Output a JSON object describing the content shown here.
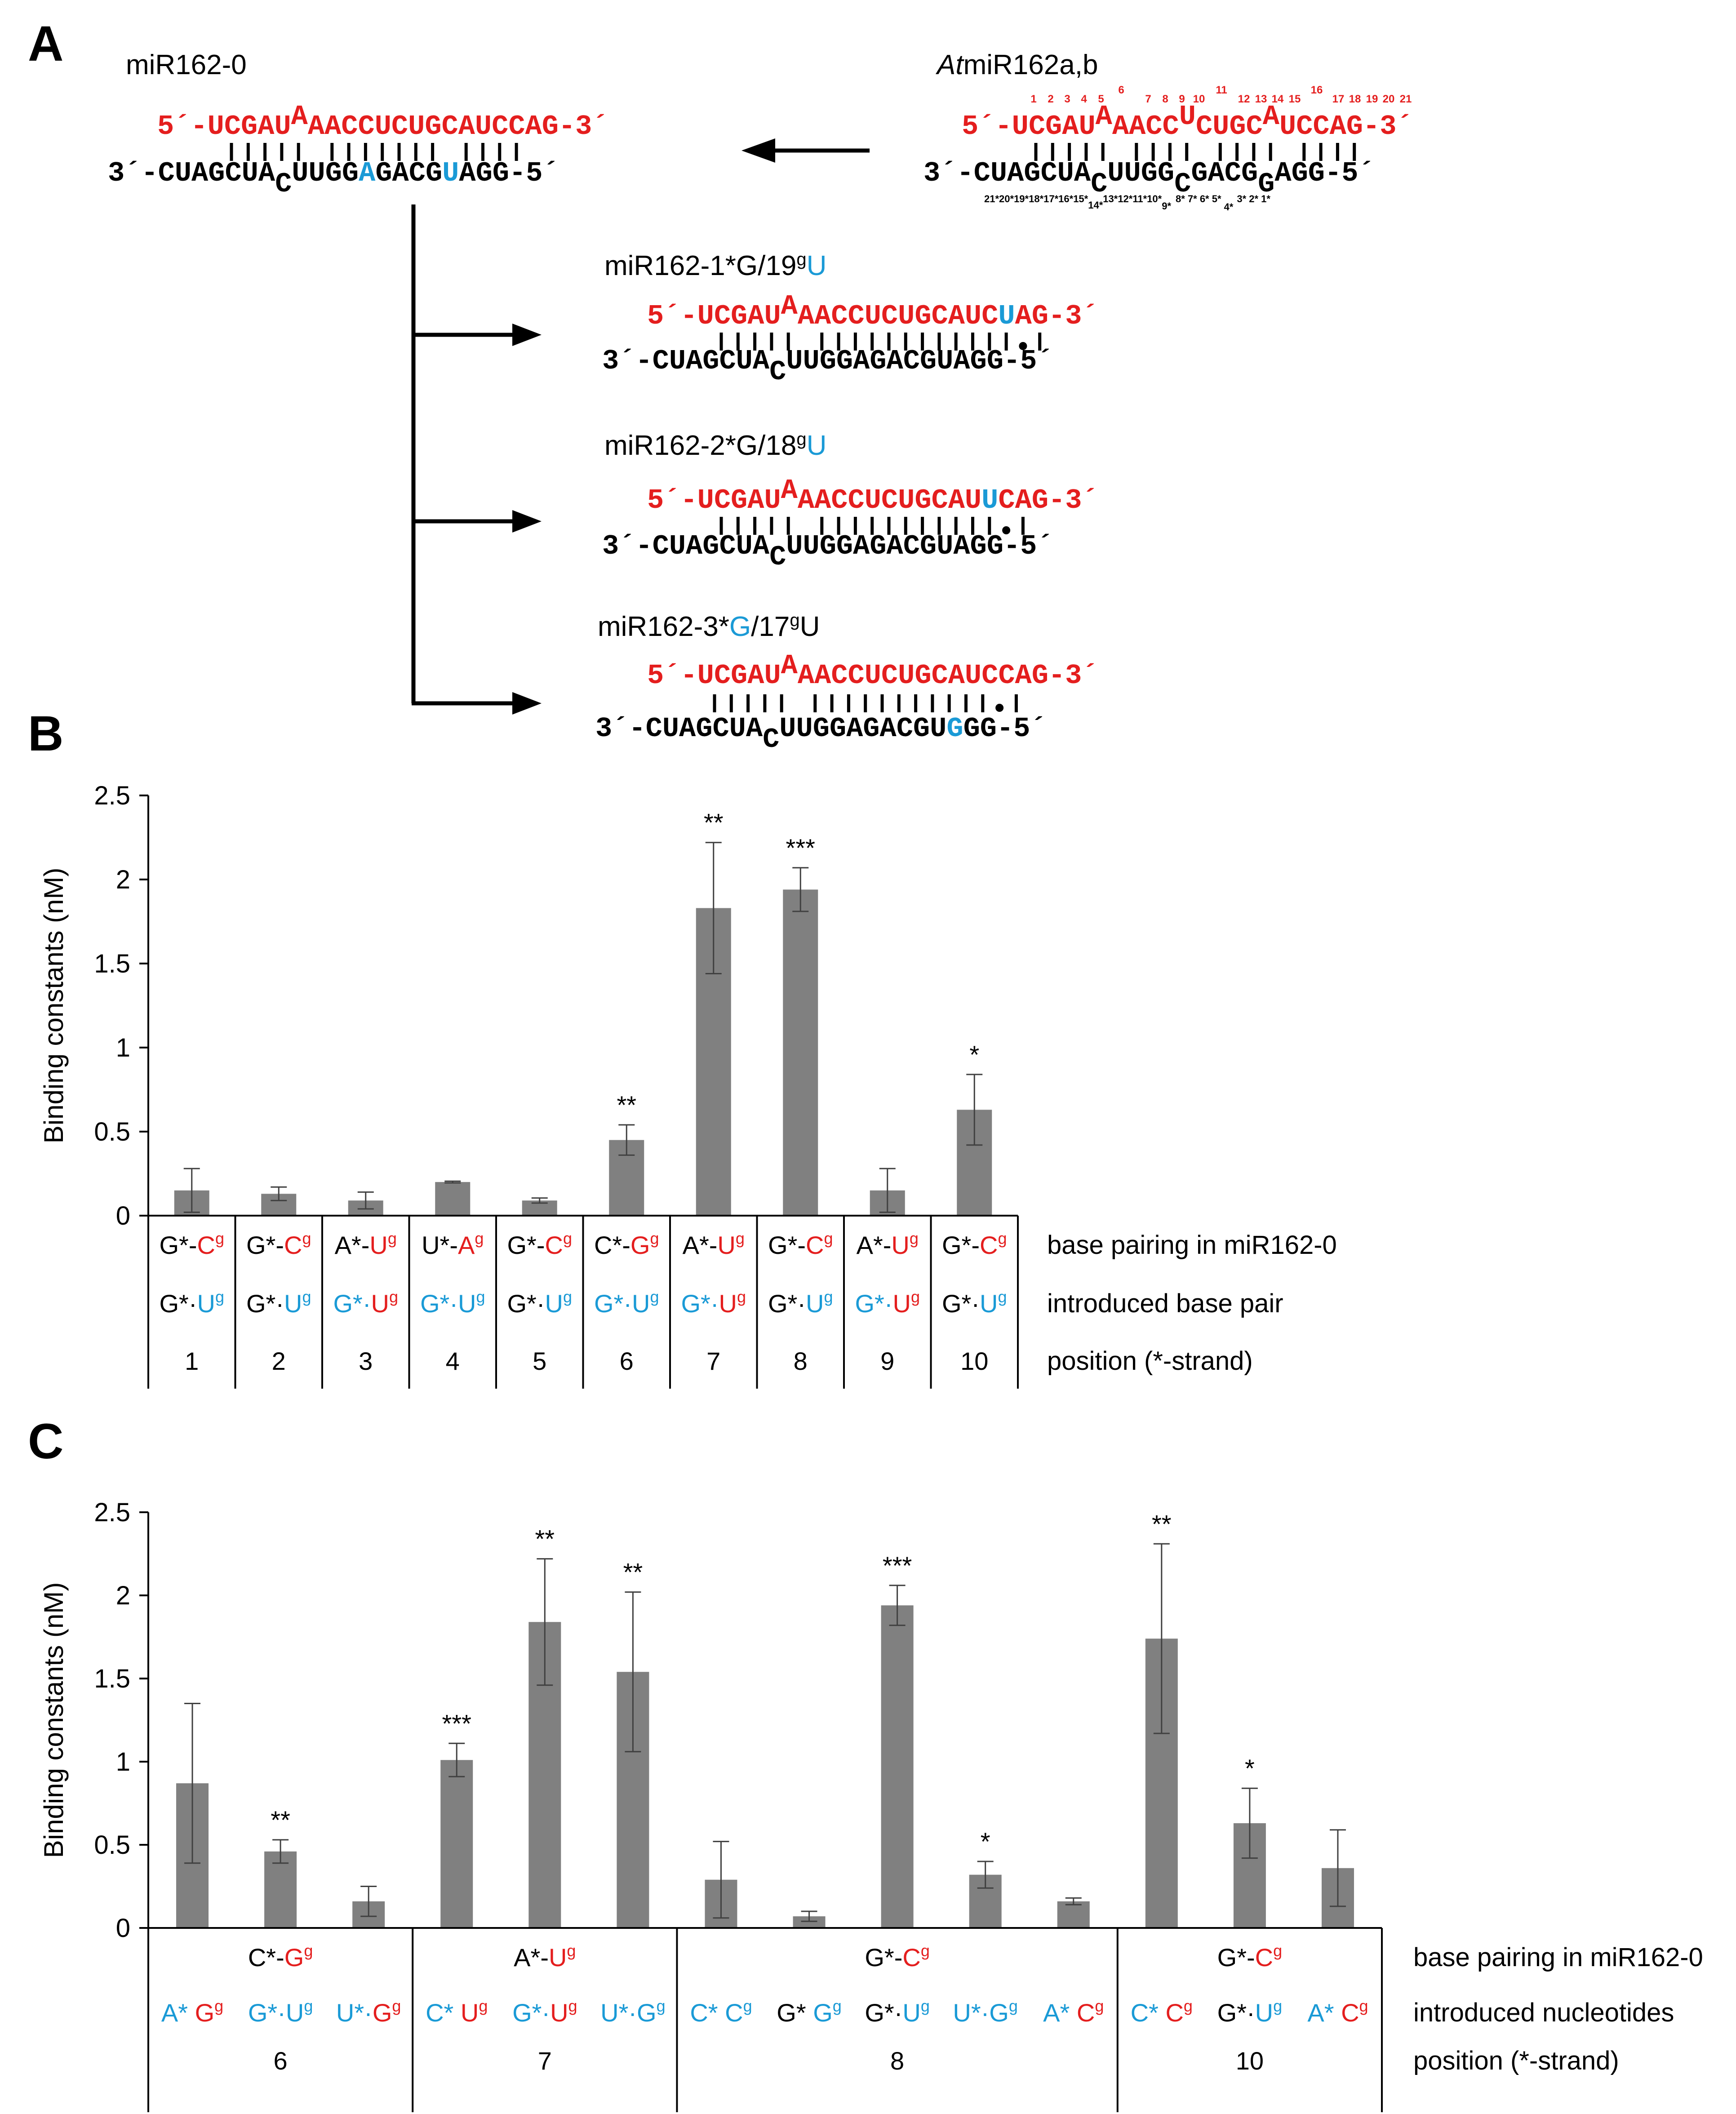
{
  "panel_letters": {
    "a": "A",
    "b": "B",
    "c": "C"
  },
  "panelA": {
    "mir162_0": {
      "title": "miR162-0",
      "top_prefix": "5´-",
      "top_seq1": "UCGAU",
      "top_bulge": "A",
      "top_seq2": "AACCUCUGCAUCCAG",
      "top_suffix": "-3´",
      "bottom_prefix": "3´-CUAGCUA",
      "bottom_bulge": "C",
      "bottom_seq1": "UUGG",
      "bottom_blue1": "A",
      "bottom_seq2": "GACG",
      "bottom_blue2": "U",
      "bottom_seq3": "AGG-5´"
    },
    "at_mir162": {
      "title_italic": "At",
      "title_rest": "miR162a,b",
      "top_numbers": [
        "1",
        "2",
        "3",
        "4",
        "5",
        "6",
        "7",
        "8",
        "9",
        "10",
        "11",
        "12",
        "13",
        "14",
        "15",
        "16",
        "17",
        "18",
        "19",
        "20",
        "21"
      ],
      "top_prefix": "5´-",
      "top_seq1": "UCGAU",
      "bulge1": "A",
      "top_seq2": "AACC",
      "bulge2": "U",
      "top_seq3": "CUGC",
      "bulge3": "A",
      "top_seq4": "UCCAG",
      "top_suffix": "-3´",
      "bottom_prefix": "3´-CUAGCUA",
      "bb1": "C",
      "bottom_seq1": "UUGG",
      "bb2": "C",
      "bottom_seq2": "GACG",
      "bb3": "G",
      "bottom_seq3": "AGG-5´",
      "bottom_numbers_a": "21*20*19*18*17*16*15*",
      "bottom_num_14": "14*",
      "bottom_numbers_b": "13*12*11*10*",
      "bottom_num_9": "9*",
      "bottom_numbers_c": "8*  7*   6*  5*",
      "bottom_num_4": "4*",
      "bottom_numbers_d": "3*  2*  1*"
    },
    "variant1": {
      "title": "miR162-1*G/19",
      "title_sup": "g",
      "title_end": "U",
      "top_seq1": "UCGAU",
      "top_bulge": "A",
      "top_seq2": "AACCUCUGCAUC",
      "top_blue": "U",
      "top_seq3": "AG-3´",
      "bottom_prefix": "3´-CUAGCUA",
      "bottom_bulge": "C",
      "bottom_seq": "UUGGAGACGUAGG-5´"
    },
    "variant2": {
      "title": "miR162-2*G/18",
      "title_sup": "g",
      "title_end": "U",
      "top_seq1": "UCGAU",
      "top_bulge": "A",
      "top_seq2": "AACCUCUGCAU",
      "top_blue": "U",
      "top_seq3": "CAG-3´",
      "bottom_prefix": "3´-CUAGCUA",
      "bottom_bulge": "C",
      "bottom_seq": "UUGGAGACGUAGG-5´"
    },
    "variant3": {
      "title1": "miR162-3*",
      "title_blue": "G",
      "title2": "/17",
      "title_sup": "g",
      "title_end": "U",
      "top_seq1": "UCGAU",
      "top_bulge": "A",
      "top_seq2": "AACCUCUGCAUCCAG-3´",
      "bottom_prefix": "3´-CUAGCUA",
      "bottom_bulge": "C",
      "bottom_seq1": "UUGGAGACGU",
      "bottom_blue": "G",
      "bottom_seq2": "GG-5´"
    }
  },
  "chart_data": [
    {
      "type": "bar",
      "title": "",
      "ylabel": "Binding constants (nM)",
      "ylim": [
        0,
        2.5
      ],
      "yticks": [
        "0",
        "0.5",
        "1",
        "1.5",
        "2",
        "2.5"
      ],
      "categories": [
        "1",
        "2",
        "3",
        "4",
        "5",
        "6",
        "7",
        "8",
        "9",
        "10"
      ],
      "values": [
        0.15,
        0.13,
        0.09,
        0.2,
        0.09,
        0.45,
        1.83,
        1.94,
        0.15,
        0.63
      ],
      "errors": [
        0.13,
        0.04,
        0.05,
        0.005,
        0.015,
        0.09,
        0.39,
        0.13,
        0.13,
        0.21
      ],
      "significance": [
        "",
        "",
        "",
        "",
        "",
        "**",
        "**",
        "***",
        "",
        "*"
      ],
      "table_rows": [
        {
          "label": "base pairing in miR162-0",
          "cells": [
            [
              {
                "t": "G*-",
                "c": "blk"
              },
              {
                "t": "C",
                "c": "red"
              },
              {
                "t": "g",
                "c": "red",
                "sup": true
              }
            ],
            [
              {
                "t": "G*-",
                "c": "blk"
              },
              {
                "t": "C",
                "c": "red"
              },
              {
                "t": "g",
                "c": "red",
                "sup": true
              }
            ],
            [
              {
                "t": "A*-",
                "c": "blk"
              },
              {
                "t": "U",
                "c": "red"
              },
              {
                "t": "g",
                "c": "red",
                "sup": true
              }
            ],
            [
              {
                "t": "U*-",
                "c": "blk"
              },
              {
                "t": "A",
                "c": "red"
              },
              {
                "t": "g",
                "c": "red",
                "sup": true
              }
            ],
            [
              {
                "t": "G*-",
                "c": "blk"
              },
              {
                "t": "C",
                "c": "red"
              },
              {
                "t": "g",
                "c": "red",
                "sup": true
              }
            ],
            [
              {
                "t": "C*-",
                "c": "blk"
              },
              {
                "t": "G",
                "c": "red"
              },
              {
                "t": "g",
                "c": "red",
                "sup": true
              }
            ],
            [
              {
                "t": "A*-",
                "c": "blk"
              },
              {
                "t": "U",
                "c": "red"
              },
              {
                "t": "g",
                "c": "red",
                "sup": true
              }
            ],
            [
              {
                "t": "G*-",
                "c": "blk"
              },
              {
                "t": "C",
                "c": "red"
              },
              {
                "t": "g",
                "c": "red",
                "sup": true
              }
            ],
            [
              {
                "t": "A*-",
                "c": "blk"
              },
              {
                "t": "U",
                "c": "red"
              },
              {
                "t": "g",
                "c": "red",
                "sup": true
              }
            ],
            [
              {
                "t": "G*-",
                "c": "blk"
              },
              {
                "t": "C",
                "c": "red"
              },
              {
                "t": "g",
                "c": "red",
                "sup": true
              }
            ]
          ]
        },
        {
          "label": "introduced base pair",
          "cells": [
            [
              {
                "t": "G*·",
                "c": "blk"
              },
              {
                "t": "U",
                "c": "blue"
              },
              {
                "t": "g",
                "c": "blue",
                "sup": true
              }
            ],
            [
              {
                "t": "G*·",
                "c": "blk"
              },
              {
                "t": "U",
                "c": "blue"
              },
              {
                "t": "g",
                "c": "blue",
                "sup": true
              }
            ],
            [
              {
                "t": "G*·",
                "c": "blue"
              },
              {
                "t": "U",
                "c": "red"
              },
              {
                "t": "g",
                "c": "red",
                "sup": true
              }
            ],
            [
              {
                "t": "G*·",
                "c": "blue"
              },
              {
                "t": "U",
                "c": "blue"
              },
              {
                "t": "g",
                "c": "blue",
                "sup": true
              }
            ],
            [
              {
                "t": "G*·",
                "c": "blk"
              },
              {
                "t": "U",
                "c": "blue"
              },
              {
                "t": "g",
                "c": "blue",
                "sup": true
              }
            ],
            [
              {
                "t": "G*·",
                "c": "blue"
              },
              {
                "t": "U",
                "c": "blue"
              },
              {
                "t": "g",
                "c": "blue",
                "sup": true
              }
            ],
            [
              {
                "t": "G*·",
                "c": "blue"
              },
              {
                "t": "U",
                "c": "red"
              },
              {
                "t": "g",
                "c": "red",
                "sup": true
              }
            ],
            [
              {
                "t": "G*·",
                "c": "blk"
              },
              {
                "t": "U",
                "c": "blue"
              },
              {
                "t": "g",
                "c": "blue",
                "sup": true
              }
            ],
            [
              {
                "t": "G*·",
                "c": "blue"
              },
              {
                "t": "U",
                "c": "red"
              },
              {
                "t": "g",
                "c": "red",
                "sup": true
              }
            ],
            [
              {
                "t": "G*·",
                "c": "blk"
              },
              {
                "t": "U",
                "c": "blue"
              },
              {
                "t": "g",
                "c": "blue",
                "sup": true
              }
            ]
          ]
        },
        {
          "label": "position (*-strand)",
          "cells": [
            [
              {
                "t": "1",
                "c": "blk"
              }
            ],
            [
              {
                "t": "2",
                "c": "blk"
              }
            ],
            [
              {
                "t": "3",
                "c": "blk"
              }
            ],
            [
              {
                "t": "4",
                "c": "blk"
              }
            ],
            [
              {
                "t": "5",
                "c": "blk"
              }
            ],
            [
              {
                "t": "6",
                "c": "blk"
              }
            ],
            [
              {
                "t": "7",
                "c": "blk"
              }
            ],
            [
              {
                "t": "8",
                "c": "blk"
              }
            ],
            [
              {
                "t": "9",
                "c": "blk"
              }
            ],
            [
              {
                "t": "10",
                "c": "blk"
              }
            ]
          ]
        }
      ]
    },
    {
      "type": "bar",
      "title": "",
      "ylabel": "Binding constants (nM)",
      "ylim": [
        0,
        2.5
      ],
      "yticks": [
        "0",
        "0.5",
        "1",
        "1.5",
        "2",
        "2.5"
      ],
      "categories": [
        "A* Gg",
        "G*·Ug",
        "U*·Gg",
        "C* Ug",
        "G*·Ug",
        "U*·Gg",
        "C* Cg",
        "G* Gg",
        "G*·Ug",
        "U*·Gg",
        "A* Cg",
        "C* Cg",
        "G*·Ug",
        "A* Cg"
      ],
      "values": [
        0.87,
        0.46,
        0.16,
        1.01,
        1.84,
        1.54,
        0.29,
        0.07,
        1.94,
        0.32,
        0.16,
        1.74,
        0.63,
        0.36
      ],
      "errors": [
        0.48,
        0.07,
        0.09,
        0.1,
        0.38,
        0.48,
        0.23,
        0.03,
        0.12,
        0.08,
        0.02,
        0.57,
        0.21,
        0.23
      ],
      "significance": [
        "",
        "**",
        "",
        "***",
        "**",
        "**",
        "",
        "",
        "***",
        "*",
        "",
        "**",
        "*",
        ""
      ],
      "groups": [
        {
          "position": "6",
          "pairing": [
            {
              "t": "C*-",
              "c": "blk"
            },
            {
              "t": "G",
              "c": "red"
            },
            {
              "t": "g",
              "c": "red",
              "sup": true
            }
          ],
          "count": 3
        },
        {
          "position": "7",
          "pairing": [
            {
              "t": "A*-",
              "c": "blk"
            },
            {
              "t": "U",
              "c": "red"
            },
            {
              "t": "g",
              "c": "red",
              "sup": true
            }
          ],
          "count": 3
        },
        {
          "position": "8",
          "pairing": [
            {
              "t": "G*-",
              "c": "blk"
            },
            {
              "t": "C",
              "c": "red"
            },
            {
              "t": "g",
              "c": "red",
              "sup": true
            }
          ],
          "count": 5
        },
        {
          "position": "10",
          "pairing": [
            {
              "t": "G*-",
              "c": "blk"
            },
            {
              "t": "C",
              "c": "red"
            },
            {
              "t": "g",
              "c": "red",
              "sup": true
            }
          ],
          "count": 3
        }
      ],
      "introduced": [
        [
          {
            "t": "A* ",
            "c": "blue"
          },
          {
            "t": "G",
            "c": "red"
          },
          {
            "t": "g",
            "c": "red",
            "sup": true
          }
        ],
        [
          {
            "t": "G*·U",
            "c": "blue"
          },
          {
            "t": "g",
            "c": "blue",
            "sup": true
          }
        ],
        [
          {
            "t": "U*·",
            "c": "blue"
          },
          {
            "t": "G",
            "c": "red"
          },
          {
            "t": "g",
            "c": "red",
            "sup": true
          }
        ],
        [
          {
            "t": "C* ",
            "c": "blue"
          },
          {
            "t": "U",
            "c": "red"
          },
          {
            "t": "g",
            "c": "red",
            "sup": true
          }
        ],
        [
          {
            "t": "G*·",
            "c": "blue"
          },
          {
            "t": "U",
            "c": "red"
          },
          {
            "t": "g",
            "c": "red",
            "sup": true
          }
        ],
        [
          {
            "t": "U*·G",
            "c": "blue"
          },
          {
            "t": "g",
            "c": "blue",
            "sup": true
          }
        ],
        [
          {
            "t": "C* C",
            "c": "blue"
          },
          {
            "t": "g",
            "c": "blue",
            "sup": true
          }
        ],
        [
          {
            "t": "G* ",
            "c": "blk"
          },
          {
            "t": "G",
            "c": "blue"
          },
          {
            "t": "g",
            "c": "blue",
            "sup": true
          }
        ],
        [
          {
            "t": "G*·",
            "c": "blk"
          },
          {
            "t": "U",
            "c": "blue"
          },
          {
            "t": "g",
            "c": "blue",
            "sup": true
          }
        ],
        [
          {
            "t": "U*·G",
            "c": "blue"
          },
          {
            "t": "g",
            "c": "blue",
            "sup": true
          }
        ],
        [
          {
            "t": "A* ",
            "c": "blue"
          },
          {
            "t": "C",
            "c": "red"
          },
          {
            "t": "g",
            "c": "red",
            "sup": true
          }
        ],
        [
          {
            "t": "C* ",
            "c": "blue"
          },
          {
            "t": "C",
            "c": "red"
          },
          {
            "t": "g",
            "c": "red",
            "sup": true
          }
        ],
        [
          {
            "t": "G*·",
            "c": "blk"
          },
          {
            "t": "U",
            "c": "blue"
          },
          {
            "t": "g",
            "c": "blue",
            "sup": true
          }
        ],
        [
          {
            "t": "A* ",
            "c": "blue"
          },
          {
            "t": "C",
            "c": "red"
          },
          {
            "t": "g",
            "c": "red",
            "sup": true
          }
        ]
      ],
      "row_labels": [
        "base pairing in miR162-0",
        "introduced nucleotides",
        "position (*-strand)"
      ]
    }
  ]
}
